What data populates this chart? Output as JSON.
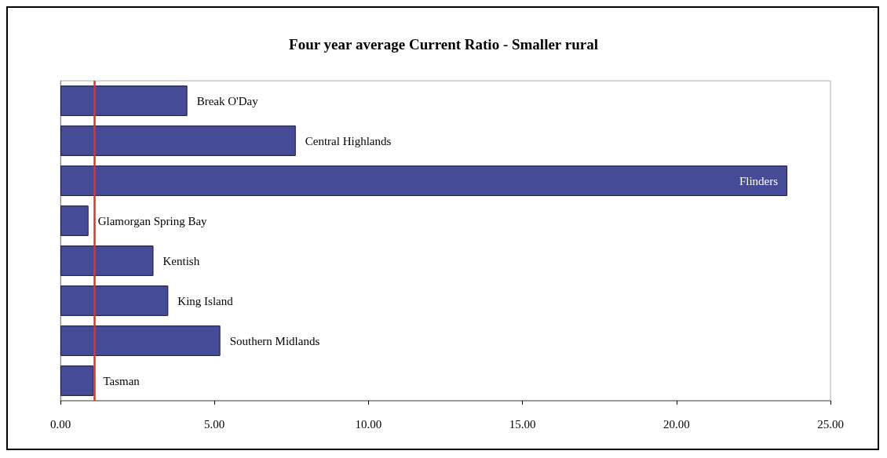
{
  "chart_data": {
    "type": "bar",
    "orientation": "horizontal",
    "title": "Four year average Current Ratio - Smaller rural",
    "categories": [
      "Break O'Day",
      "Central Highlands",
      "Flinders",
      "Glamorgan Spring Bay",
      "Kentish",
      "King Island",
      "Southern Midlands",
      "Tasman"
    ],
    "values": [
      4.12,
      7.64,
      23.6,
      0.91,
      3.02,
      3.5,
      5.19,
      1.08
    ],
    "color": "#454b97",
    "xlim": [
      0,
      25
    ],
    "xticks": [
      {
        "value": 0,
        "label": "0.00"
      },
      {
        "value": 5,
        "label": "5.00"
      },
      {
        "value": 10,
        "label": "10.00"
      },
      {
        "value": 15,
        "label": "15.00"
      },
      {
        "value": 20,
        "label": "20.00"
      },
      {
        "value": 25,
        "label": "25.00"
      }
    ],
    "tick_labels": "x",
    "grid": false,
    "ref_lines": [
      {
        "axis": "x",
        "value": 1.1,
        "label": null,
        "color": "#e8321e"
      }
    ]
  }
}
